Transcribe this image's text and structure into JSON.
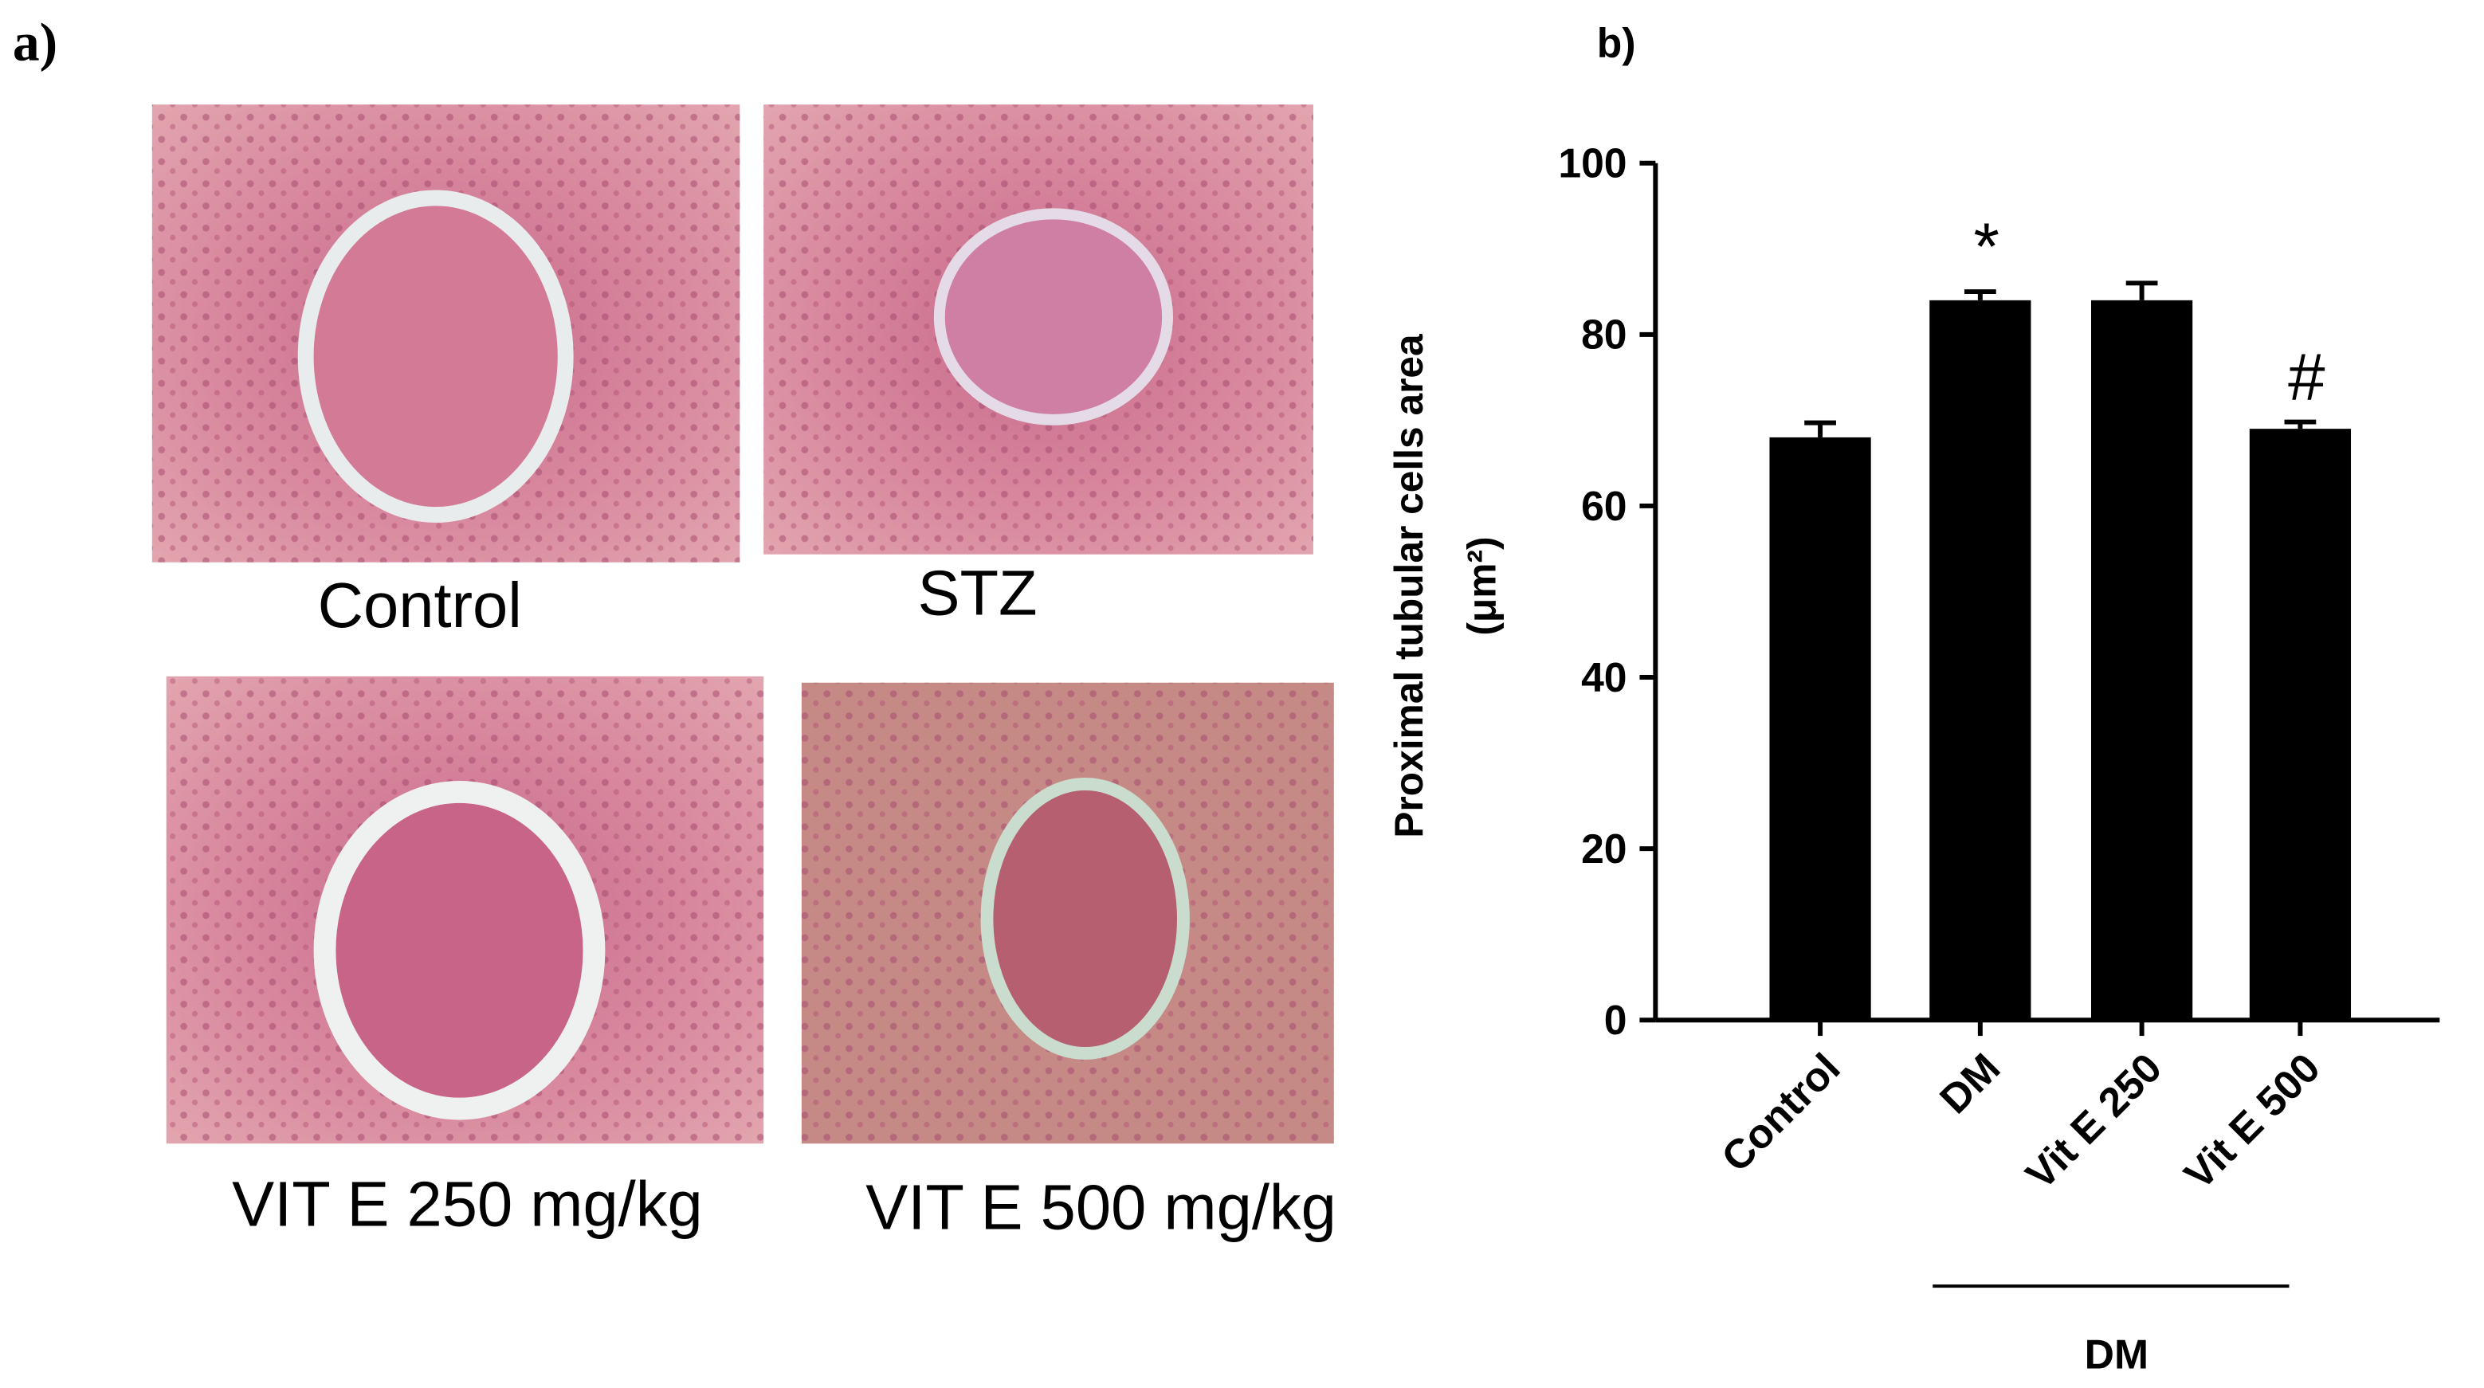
{
  "panel_a": {
    "label": "a)",
    "images": [
      {
        "caption": "Control"
      },
      {
        "caption": "STZ"
      },
      {
        "caption": "VIT E 250 mg/kg"
      },
      {
        "caption": "VIT E 500 mg/kg"
      }
    ]
  },
  "chart_data": {
    "type": "bar",
    "panel_label": "b)",
    "y_label": "Proximal tubular cells area",
    "y_unit": "(μm²)",
    "categories": [
      "Control",
      "DM",
      "Vit E 250",
      "Vit E 500"
    ],
    "values": [
      68,
      84,
      84,
      69
    ],
    "errors": [
      1.7,
      1,
      2,
      0.8
    ],
    "bar_annotations": [
      null,
      "*",
      null,
      "#"
    ],
    "group_label": "DM",
    "color": "#000000",
    "ylim": [
      0,
      100
    ],
    "yticks": [
      0,
      20,
      40,
      60,
      80,
      100
    ]
  }
}
